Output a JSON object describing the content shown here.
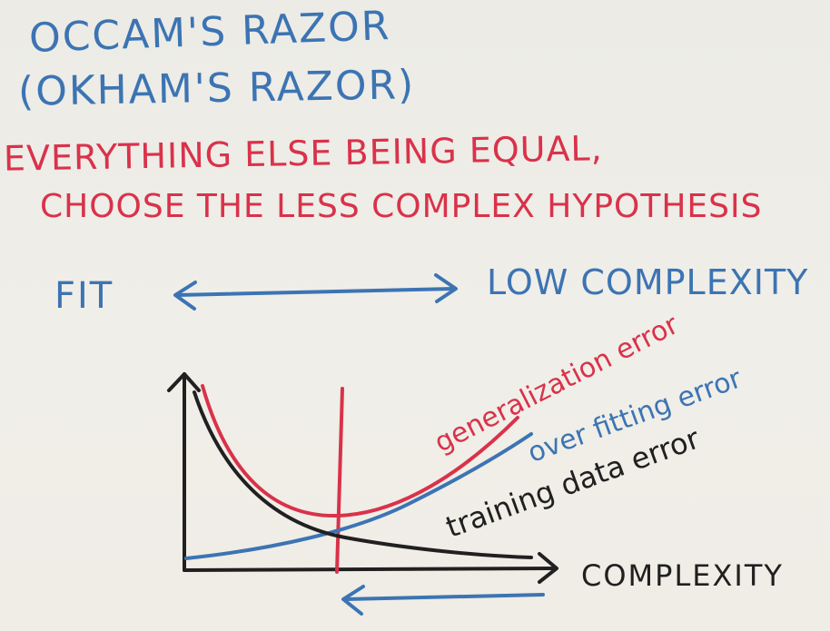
{
  "title": {
    "line1": "OCCAM'S RAZOR",
    "line2": "(OKHAM'S RAZOR)"
  },
  "principle": {
    "line1": "EVERYTHING ELSE BEING EQUAL,",
    "line2": "CHOOSE THE LESS COMPLEX HYPOTHESIS"
  },
  "tradeoff": {
    "left": "FIT",
    "right": "LOW COMPLEXITY"
  },
  "graph": {
    "x_axis_label": "COMPLEXITY",
    "curves": [
      {
        "name": "generalization error",
        "color": "#d9324a"
      },
      {
        "name": "over fitting error",
        "color": "#3c74b3"
      },
      {
        "name": "training data error",
        "color": "#202020"
      }
    ]
  },
  "colors": {
    "blue_marker": "#3c74b3",
    "red_marker": "#d9324a",
    "black_marker": "#202020"
  }
}
